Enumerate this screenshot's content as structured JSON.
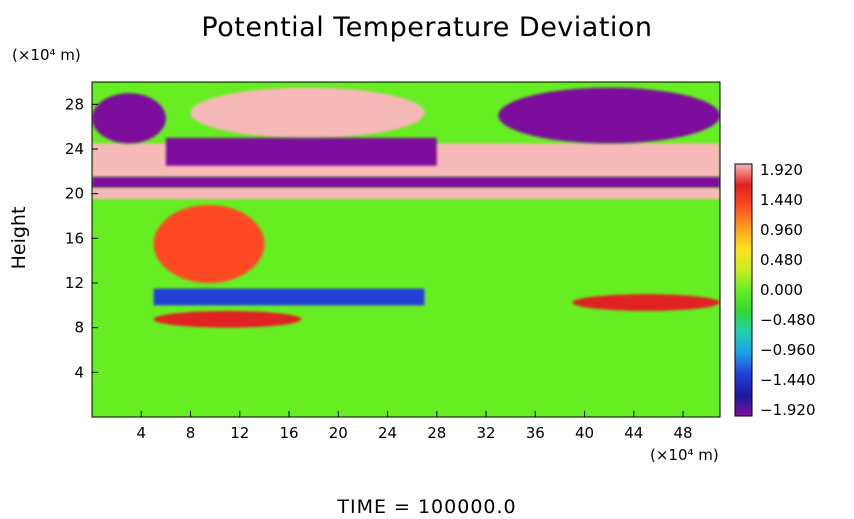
{
  "chart_data": {
    "type": "heatmap",
    "title": "Potential Temperature Deviation",
    "ylabel": "Height",
    "xlabel": "",
    "x_unit": "(×10⁴ m)",
    "y_unit": "(×10⁴ m)",
    "footer": "TIME  =  100000.0",
    "xlim": [
      0,
      51
    ],
    "ylim": [
      0,
      30
    ],
    "x_ticks": [
      4,
      8,
      12,
      16,
      20,
      24,
      28,
      32,
      36,
      40,
      44,
      48
    ],
    "y_ticks": [
      4,
      8,
      12,
      16,
      20,
      24,
      28
    ],
    "colorbar": {
      "min": -1.92,
      "max": 1.92,
      "tick_labels": [
        "1.920",
        "1.440",
        "0.960",
        "0.480",
        "0.000",
        "−0.480",
        "−0.960",
        "−1.440",
        "−1.920"
      ],
      "colors": [
        "#7d0f9c",
        "#1a1aa0",
        "#2440d8",
        "#1aa0e8",
        "#20d0b0",
        "#30d830",
        "#66ee22",
        "#ccee22",
        "#ffe020",
        "#ff9a20",
        "#ff4a20",
        "#e02020",
        "#f7b8b8"
      ]
    },
    "regions": [
      {
        "name": "upper-purple-left",
        "value": -1.92,
        "x": [
          0,
          6
        ],
        "y": [
          24.5,
          29
        ]
      },
      {
        "name": "upper-pink-center",
        "value": 1.92,
        "x": [
          8,
          27
        ],
        "y": [
          25,
          29.5
        ]
      },
      {
        "name": "upper-purple-right",
        "value": -1.92,
        "x": [
          33,
          51
        ],
        "y": [
          24.5,
          29.5
        ]
      },
      {
        "name": "mid-purple-band",
        "value": -1.92,
        "x": [
          6,
          28
        ],
        "y": [
          22.5,
          25
        ]
      },
      {
        "name": "pink-band",
        "value": 1.92,
        "x": [
          0,
          51
        ],
        "y": [
          21.5,
          24.5
        ]
      },
      {
        "name": "purple-thin-band",
        "value": -1.92,
        "x": [
          0,
          51
        ],
        "y": [
          20.5,
          21.5
        ]
      },
      {
        "name": "pink-band-lower",
        "value": 1.92,
        "x": [
          0,
          51
        ],
        "y": [
          19.5,
          20.5
        ]
      },
      {
        "name": "red-patch",
        "value": 1.2,
        "x": [
          5,
          14
        ],
        "y": [
          12,
          19
        ]
      },
      {
        "name": "blue-band",
        "value": -1.2,
        "x": [
          5,
          27
        ],
        "y": [
          10,
          11.5
        ]
      },
      {
        "name": "pink-patch-right",
        "value": 1.6,
        "x": [
          39,
          51
        ],
        "y": [
          9.5,
          11
        ]
      },
      {
        "name": "pink-patch-left",
        "value": 1.6,
        "x": [
          5,
          17
        ],
        "y": [
          8,
          9.5
        ]
      },
      {
        "name": "green-background",
        "value": 0.0,
        "x": [
          0,
          51
        ],
        "y": [
          0,
          20
        ]
      }
    ]
  }
}
